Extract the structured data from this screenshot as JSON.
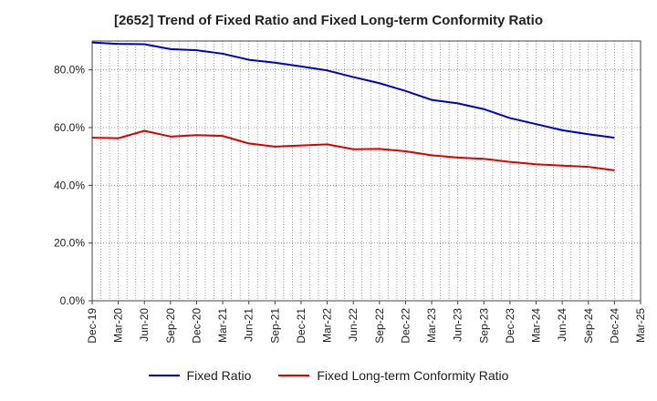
{
  "chart_data": {
    "type": "line",
    "title": "[2652]  Trend of Fixed Ratio and Fixed Long-term Conformity Ratio",
    "xlabel": "",
    "ylabel": "",
    "ylim": [
      0,
      90
    ],
    "yticks": [
      0,
      20,
      40,
      60,
      80
    ],
    "ytick_labels": [
      "0.0%",
      "20.0%",
      "40.0%",
      "60.0%",
      "80.0%"
    ],
    "grid": true,
    "legend_position": "bottom",
    "x_tick_labels": [
      "Dec-19",
      "Mar-20",
      "Jun-20",
      "Sep-20",
      "Dec-20",
      "Mar-21",
      "Jun-21",
      "Sep-21",
      "Dec-21",
      "Mar-22",
      "Jun-22",
      "Sep-22",
      "Dec-22",
      "Mar-23",
      "Jun-23",
      "Sep-23",
      "Dec-23",
      "Mar-24",
      "Jun-24",
      "Sep-24",
      "Dec-24",
      "Mar-25"
    ],
    "x": [
      "Dec-19",
      "Mar-20",
      "Jun-20",
      "Sep-20",
      "Dec-20",
      "Mar-21",
      "Jun-21",
      "Sep-21",
      "Dec-21",
      "Mar-22",
      "Jun-22",
      "Sep-22",
      "Dec-22",
      "Mar-23",
      "Jun-23",
      "Sep-23",
      "Dec-23",
      "Mar-24",
      "Jun-24",
      "Sep-24",
      "Dec-24"
    ],
    "series": [
      {
        "name": "Fixed Ratio",
        "color": "#0000cc",
        "values": [
          89.5,
          89.0,
          88.9,
          87.2,
          86.8,
          85.6,
          83.5,
          82.5,
          81.2,
          79.8,
          77.5,
          75.4,
          72.7,
          69.6,
          68.4,
          66.4,
          63.3,
          61.2,
          59.1,
          57.7,
          56.5
        ]
      },
      {
        "name": "Fixed Long-term Conformity Ratio",
        "color": "#dd0000",
        "values": [
          56.5,
          56.3,
          58.9,
          56.9,
          57.4,
          57.1,
          54.5,
          53.4,
          53.8,
          54.2,
          52.5,
          52.6,
          51.8,
          50.4,
          49.6,
          49.2,
          48.1,
          47.3,
          46.8,
          46.4,
          45.2
        ]
      }
    ]
  }
}
